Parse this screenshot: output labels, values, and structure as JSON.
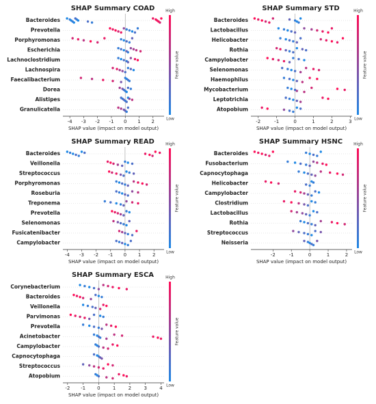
{
  "chart_data": [
    {
      "type": "beeswarm",
      "title": "SHAP Summary COAD",
      "xlabel": "SHAP value (impact on model output)",
      "xlim": [
        -4.5,
        2.8
      ],
      "xticks": [
        -4,
        -3,
        -2,
        -1,
        0,
        1,
        2
      ],
      "colormap": [
        "#1e88e5",
        "#ff0d57"
      ],
      "colorbar_high": "High",
      "colorbar_low": "Low",
      "colorbar_label": "Feature value",
      "features": [
        "Bacteroides",
        "Prevotella",
        "Porphyromonas",
        "Escherichia",
        "Lachnoclostridium",
        "Lachnospira",
        "Faecalibacterium",
        "Dorea",
        "Alistipes",
        "Granulicatella"
      ],
      "shap": [
        [
          -4.2,
          -4.0,
          -3.9,
          -3.8,
          -3.7,
          -3.6,
          -3.5,
          -3.4,
          -2.7,
          -2.4,
          2.0,
          2.2,
          2.3,
          2.4,
          2.5,
          2.6
        ],
        [
          -1.1,
          -0.9,
          -0.7,
          -0.5,
          -0.3,
          -0.1,
          0.1,
          0.3,
          0.5,
          0.7,
          0.9
        ],
        [
          -3.8,
          -3.4,
          -3.0,
          -2.5,
          -2.0,
          -1.5,
          -0.3,
          -0.1,
          0.1,
          0.3,
          0.5
        ],
        [
          -0.5,
          -0.3,
          -0.1,
          0.1,
          0.2,
          0.4,
          0.6,
          0.8,
          1.1
        ],
        [
          -0.5,
          -0.3,
          -0.1,
          0.1,
          0.2,
          0.4,
          0.7,
          0.9
        ],
        [
          -0.9,
          -0.6,
          -0.4,
          -0.2,
          0,
          0.2,
          0.4,
          0.6
        ],
        [
          -3.2,
          -2.4,
          -1.6,
          -0.9,
          -0.3,
          0,
          0.1,
          0.2,
          0.3
        ],
        [
          -0.4,
          -0.2,
          -0.1,
          0,
          0.1,
          0.2,
          0.4
        ],
        [
          -0.3,
          -0.2,
          -0.1,
          0,
          0.1,
          0.2,
          0.3,
          0.5
        ],
        [
          -0.5,
          -0.3,
          -0.1,
          0,
          0.1,
          0.2
        ]
      ],
      "feature_value": [
        [
          0,
          0.1,
          0,
          0.1,
          0,
          0.2,
          0.1,
          0,
          0.2,
          0.1,
          0.9,
          1,
          0.9,
          1,
          0.8,
          1
        ],
        [
          1,
          0.9,
          1,
          0.8,
          0.9,
          0.5,
          0.1,
          0.1,
          0,
          0.2,
          0.1
        ],
        [
          0.8,
          0.9,
          0.7,
          1,
          0.8,
          0.9,
          0.1,
          0,
          0.2,
          0.1,
          0.3
        ],
        [
          0.1,
          0.2,
          0,
          0.3,
          0.1,
          0.5,
          0.6,
          0.7,
          0.8
        ],
        [
          0.1,
          0,
          0.2,
          0.1,
          0.3,
          0.5,
          0.9,
          1
        ],
        [
          0.8,
          0.9,
          0.6,
          0.5,
          0.2,
          0.1,
          0.3,
          0
        ],
        [
          0.8,
          0.7,
          0.9,
          0.8,
          0.4,
          0.1,
          0,
          0.2,
          0.1
        ],
        [
          0.6,
          0.4,
          0.2,
          0.1,
          0,
          0.2,
          0.1
        ],
        [
          0.2,
          0.1,
          0.3,
          0.1,
          0.2,
          0,
          0.5,
          0.7
        ],
        [
          0.7,
          0.6,
          0.4,
          0.3,
          0.1,
          0.2
        ]
      ]
    },
    {
      "type": "beeswarm",
      "title": "SHAP Summary STD",
      "xlabel": "SHAP value (impact on model output)",
      "xlim": [
        -2.4,
        3.1
      ],
      "xticks": [
        -2,
        -1,
        0,
        1,
        2,
        3
      ],
      "colormap": [
        "#1e88e5",
        "#ff0d57"
      ],
      "colorbar_high": "High",
      "colorbar_low": "Low",
      "colorbar_label": "Feature value",
      "features": [
        "Bacteroides",
        "Lactobacillus",
        "Helicobacter",
        "Rothia",
        "Campylobacter",
        "Selenomonas",
        "Haemophilus",
        "Mycobacterium",
        "Leptotrichia",
        "Atopobium"
      ],
      "shap": [
        [
          -2.2,
          -2.0,
          -1.8,
          -1.6,
          -1.4,
          -1.2,
          -0.3,
          0,
          0.1,
          0.2,
          0.3
        ],
        [
          -0.9,
          -0.6,
          -0.4,
          -0.2,
          0,
          0.5,
          0.9,
          1.2,
          1.5,
          1.8,
          2.0
        ],
        [
          -0.8,
          -0.5,
          -0.3,
          -0.1,
          0.1,
          0.3,
          1.4,
          1.7,
          2.0,
          2.3,
          2.6
        ],
        [
          -1.0,
          -0.8,
          -0.5,
          -0.3,
          -0.1,
          0.1,
          0.4,
          0.6
        ],
        [
          -1.5,
          -1.2,
          -0.9,
          -0.6,
          -0.3,
          -0.1,
          0.2,
          0.5
        ],
        [
          -0.7,
          -0.4,
          -0.2,
          0,
          0.3,
          0.6,
          1.0,
          1.3
        ],
        [
          -0.6,
          -0.3,
          -0.1,
          0.1,
          0.4,
          0.8,
          1.2
        ],
        [
          -0.4,
          -0.2,
          0,
          0.1,
          0.5,
          0.9,
          2.3,
          2.7
        ],
        [
          -0.5,
          -0.3,
          -0.1,
          0.1,
          0.3,
          1.5,
          1.8
        ],
        [
          -1.8,
          -1.5,
          -0.6,
          -0.3,
          -0.1,
          0.1,
          0.3
        ]
      ],
      "feature_value": [
        [
          1,
          0.9,
          1,
          0.8,
          0.9,
          0.8,
          0.3,
          0.1,
          0,
          0.1,
          0
        ],
        [
          0,
          0.1,
          0,
          0.2,
          0.3,
          0.5,
          0.6,
          0.8,
          0.9,
          1,
          0.9
        ],
        [
          0.1,
          0,
          0.2,
          0.1,
          0.3,
          0.2,
          0.8,
          0.9,
          1,
          0.9,
          1
        ],
        [
          0.8,
          0.9,
          0.3,
          0.1,
          0.2,
          0,
          0.3,
          0.2
        ],
        [
          1,
          0.9,
          0.8,
          0.9,
          0.3,
          0.1,
          0.2,
          0
        ],
        [
          0.2,
          0.1,
          0,
          0.2,
          0.6,
          0.7,
          0.9,
          0.8
        ],
        [
          0.1,
          0.2,
          0,
          0.3,
          0.7,
          0.9,
          1
        ],
        [
          0.1,
          0,
          0.2,
          0.6,
          0.7,
          0.8,
          1,
          0.9
        ],
        [
          0.2,
          0.1,
          0,
          0.3,
          0.6,
          0.9,
          1
        ],
        [
          0.9,
          1,
          0.5,
          0.2,
          0.1,
          0,
          0.2
        ]
      ]
    },
    {
      "type": "beeswarm",
      "title": "SHAP Summary READ",
      "xlabel": "SHAP value (impact on model output)",
      "xlim": [
        -4.3,
        2.7
      ],
      "xticks": [
        -4,
        -3,
        -2,
        -1,
        0,
        1,
        2
      ],
      "colormap": [
        "#1e88e5",
        "#ff0d57"
      ],
      "colorbar_high": "High",
      "colorbar_low": "Low",
      "colorbar_label": "Feature value",
      "features": [
        "Bacteroides",
        "Veillonella",
        "Streptococcus",
        "Porphyromonas",
        "Roseburia",
        "Treponema",
        "Prevotella",
        "Selenomonas",
        "Fusicatenibacter",
        "Campylobacter"
      ],
      "shap": [
        [
          -4.0,
          -3.8,
          -3.6,
          -3.4,
          -3.2,
          -3.0,
          -2.8,
          1.4,
          1.7,
          1.9,
          2.1,
          2.4
        ],
        [
          -1.2,
          -1.0,
          -0.8,
          -0.5,
          -0.2,
          0,
          0.2,
          0.5
        ],
        [
          -1.1,
          -0.9,
          -0.6,
          -0.3,
          -0.1,
          0.1,
          0.3,
          0.6
        ],
        [
          -0.6,
          -0.4,
          -0.2,
          0,
          0.2,
          0.6,
          0.9,
          1.2,
          1.5
        ],
        [
          -0.6,
          -0.4,
          -0.2,
          0,
          0.2,
          0.5,
          0.9
        ],
        [
          -1.4,
          -1.0,
          -0.6,
          -0.3,
          -0.1,
          0.1,
          0.5,
          0.9
        ],
        [
          -0.9,
          -0.7,
          -0.5,
          -0.3,
          -0.1,
          0.1,
          0.3
        ],
        [
          -0.8,
          -0.5,
          -0.3,
          -0.1,
          0.1,
          0.3
        ],
        [
          -0.4,
          -0.2,
          0,
          0.2,
          0.5,
          0.8
        ],
        [
          -0.6,
          -0.4,
          -0.2,
          0,
          0.2,
          0.4
        ]
      ],
      "feature_value": [
        [
          0,
          0.1,
          0,
          0.2,
          0.1,
          0,
          0.2,
          0.9,
          1,
          0.8,
          1,
          0.9
        ],
        [
          0.9,
          1,
          0.8,
          0.6,
          0.3,
          0.1,
          0,
          0.2
        ],
        [
          1,
          0.8,
          0.9,
          0.4,
          0.2,
          0,
          0.1,
          0.3
        ],
        [
          0.1,
          0,
          0.2,
          0.1,
          0.3,
          0.7,
          0.9,
          1,
          0.8
        ],
        [
          0.2,
          0.1,
          0,
          0.3,
          0.2,
          0.5,
          0.7
        ],
        [
          0.1,
          0.2,
          0,
          0.1,
          0.3,
          0.5,
          0.8,
          0.9
        ],
        [
          1,
          0.9,
          0.8,
          0.6,
          0.3,
          0.1,
          0
        ],
        [
          0.7,
          0.4,
          0.2,
          0.1,
          0,
          0.3
        ],
        [
          0.8,
          0.6,
          0.3,
          0.1,
          0.2,
          0.9
        ],
        [
          0.2,
          0.1,
          0.3,
          0,
          0.1,
          0.2
        ]
      ]
    },
    {
      "type": "beeswarm",
      "title": "SHAP Summary HSNC",
      "xlabel": "SHAP value (impact on model output)",
      "xlim": [
        -3.2,
        2.3
      ],
      "xticks": [
        -2,
        -1,
        0,
        1,
        2
      ],
      "colormap": [
        "#1e88e5",
        "#ff0d57"
      ],
      "colorbar_high": "High",
      "colorbar_low": "Low",
      "colorbar_label": "Feature value",
      "features": [
        "Bacteroides",
        "Fusobacterium",
        "Capnocytophaga",
        "Helicobacter",
        "Campylobacter",
        "Clostridium",
        "Lactobacillus",
        "Rothia",
        "Streptococcus",
        "Neisseria"
      ],
      "shap": [
        [
          -3.0,
          -2.8,
          -2.6,
          -2.4,
          -2.2,
          -2.0,
          -0.2,
          0,
          0.2,
          0.4,
          0.6
        ],
        [
          -1.2,
          -0.8,
          -0.5,
          -0.2,
          0,
          0.2,
          0.4,
          0.7,
          0.9
        ],
        [
          -0.6,
          -0.3,
          -0.1,
          0.1,
          0.3,
          0.6,
          1.1,
          1.5,
          1.8
        ],
        [
          -2.4,
          -2.1,
          -1.7,
          -0.2,
          0,
          0.1,
          0.2
        ],
        [
          -0.8,
          -0.5,
          -0.3,
          -0.1,
          0.1,
          0.3,
          0.5
        ],
        [
          -1.4,
          -1.0,
          -0.6,
          -0.3,
          -0.1,
          0.1,
          0.3
        ],
        [
          -1.0,
          -0.7,
          -0.4,
          -0.2,
          0,
          0.2,
          0.4
        ],
        [
          -0.5,
          -0.3,
          -0.1,
          0.1,
          0.3,
          0.6,
          1.2,
          1.5,
          1.9
        ],
        [
          -0.9,
          -0.6,
          -0.3,
          -0.1,
          0.1,
          0.3,
          0.6
        ],
        [
          -0.3,
          -0.1,
          0,
          0.1,
          0.2,
          0.4
        ]
      ],
      "feature_value": [
        [
          1,
          0.9,
          1,
          0.8,
          0.9,
          1,
          0.1,
          0,
          0.2,
          0.1,
          0
        ],
        [
          0.1,
          0,
          0.2,
          0.1,
          0.3,
          0.5,
          0.7,
          0.9,
          1
        ],
        [
          0.1,
          0,
          0.2,
          0.3,
          0.5,
          0.7,
          0.9,
          1,
          0.8
        ],
        [
          0.9,
          1,
          0.8,
          0.2,
          0.1,
          0,
          0.1
        ],
        [
          0.9,
          0.8,
          0.6,
          0.3,
          0.1,
          0.2,
          0
        ],
        [
          0.9,
          1,
          0.7,
          0.4,
          0.2,
          0,
          0.1
        ],
        [
          0.8,
          0.6,
          0.5,
          0.3,
          0.1,
          0,
          0.2
        ],
        [
          0.1,
          0,
          0.2,
          0.1,
          0.3,
          0.6,
          0.9,
          1,
          0.8
        ],
        [
          0.5,
          0.3,
          0.2,
          0.1,
          0,
          0.2,
          0.4
        ],
        [
          0.3,
          0.1,
          0,
          0.2,
          0.1,
          0.4
        ]
      ]
    },
    {
      "type": "beeswarm",
      "title": "SHAP Summary ESCA",
      "xlabel": "SHAP value (impact on model output)",
      "xlim": [
        -2.3,
        4.2
      ],
      "xticks": [
        -2,
        -1,
        0,
        1,
        2,
        3,
        4
      ],
      "colormap": [
        "#1e88e5",
        "#ff0d57"
      ],
      "colorbar_high": "High",
      "colorbar_low": "Low",
      "colorbar_label": "Feature value",
      "features": [
        "Corynebacterium",
        "Bacteroides",
        "Veillonella",
        "Parvimonas",
        "Prevotella",
        "Acinetobacter",
        "Campylobacter",
        "Capnocytophaga",
        "Streptococcus",
        "Atopobium"
      ],
      "shap": [
        [
          -1.2,
          -0.9,
          -0.6,
          -0.3,
          0,
          0.3,
          0.6,
          0.9,
          1.3,
          1.8
        ],
        [
          -1.6,
          -1.4,
          -1.2,
          -1.0,
          -0.5,
          -0.2,
          0,
          0.2
        ],
        [
          -1.0,
          -0.7,
          -0.4,
          -0.2,
          0.1,
          0.3,
          0.5
        ],
        [
          -1.8,
          -1.5,
          -1.2,
          -0.9,
          -0.6,
          -0.3,
          0.1,
          0.3
        ],
        [
          -1.0,
          -0.6,
          -0.3,
          0,
          0.2,
          0.5,
          0.8,
          1.1
        ],
        [
          -0.3,
          -0.1,
          0,
          0.1,
          0.5,
          1.0,
          1.5,
          3.5,
          3.8,
          4.0
        ],
        [
          -0.2,
          -0.1,
          0,
          0.3,
          0.6,
          0.9,
          1.2
        ],
        [
          -0.3,
          -0.1,
          0,
          0.1,
          0.2
        ],
        [
          -1.0,
          -0.6,
          -0.3,
          0,
          0.3,
          0.6,
          0.9
        ],
        [
          -0.2,
          -0.1,
          0,
          0.5,
          0.9,
          1.3,
          1.6,
          1.8
        ]
      ],
      "feature_value": [
        [
          0,
          0.1,
          0,
          0.2,
          0.5,
          0.7,
          0.8,
          0.9,
          1,
          0.9
        ],
        [
          1,
          0.9,
          1,
          0.8,
          0.5,
          0.2,
          0,
          0.1
        ],
        [
          0,
          0.1,
          0.2,
          0.3,
          0.8,
          0.9,
          1
        ],
        [
          1,
          0.9,
          0.8,
          0.9,
          0.4,
          0.2,
          0,
          0.1
        ],
        [
          0.1,
          0,
          0.2,
          0.1,
          0.4,
          0.7,
          0.9,
          1
        ],
        [
          0.1,
          0,
          0.2,
          0.1,
          0.6,
          0.7,
          0.8,
          0.9,
          1,
          0.9
        ],
        [
          0.1,
          0,
          0.2,
          0.7,
          0.8,
          0.9,
          1
        ],
        [
          0.2,
          0,
          0.1,
          0.3,
          0.4
        ],
        [
          0.3,
          0.5,
          0.7,
          0.8,
          0.9,
          1,
          0.8
        ],
        [
          0.1,
          0,
          0.2,
          0.7,
          0.8,
          0.9,
          1,
          0.9
        ]
      ]
    }
  ]
}
